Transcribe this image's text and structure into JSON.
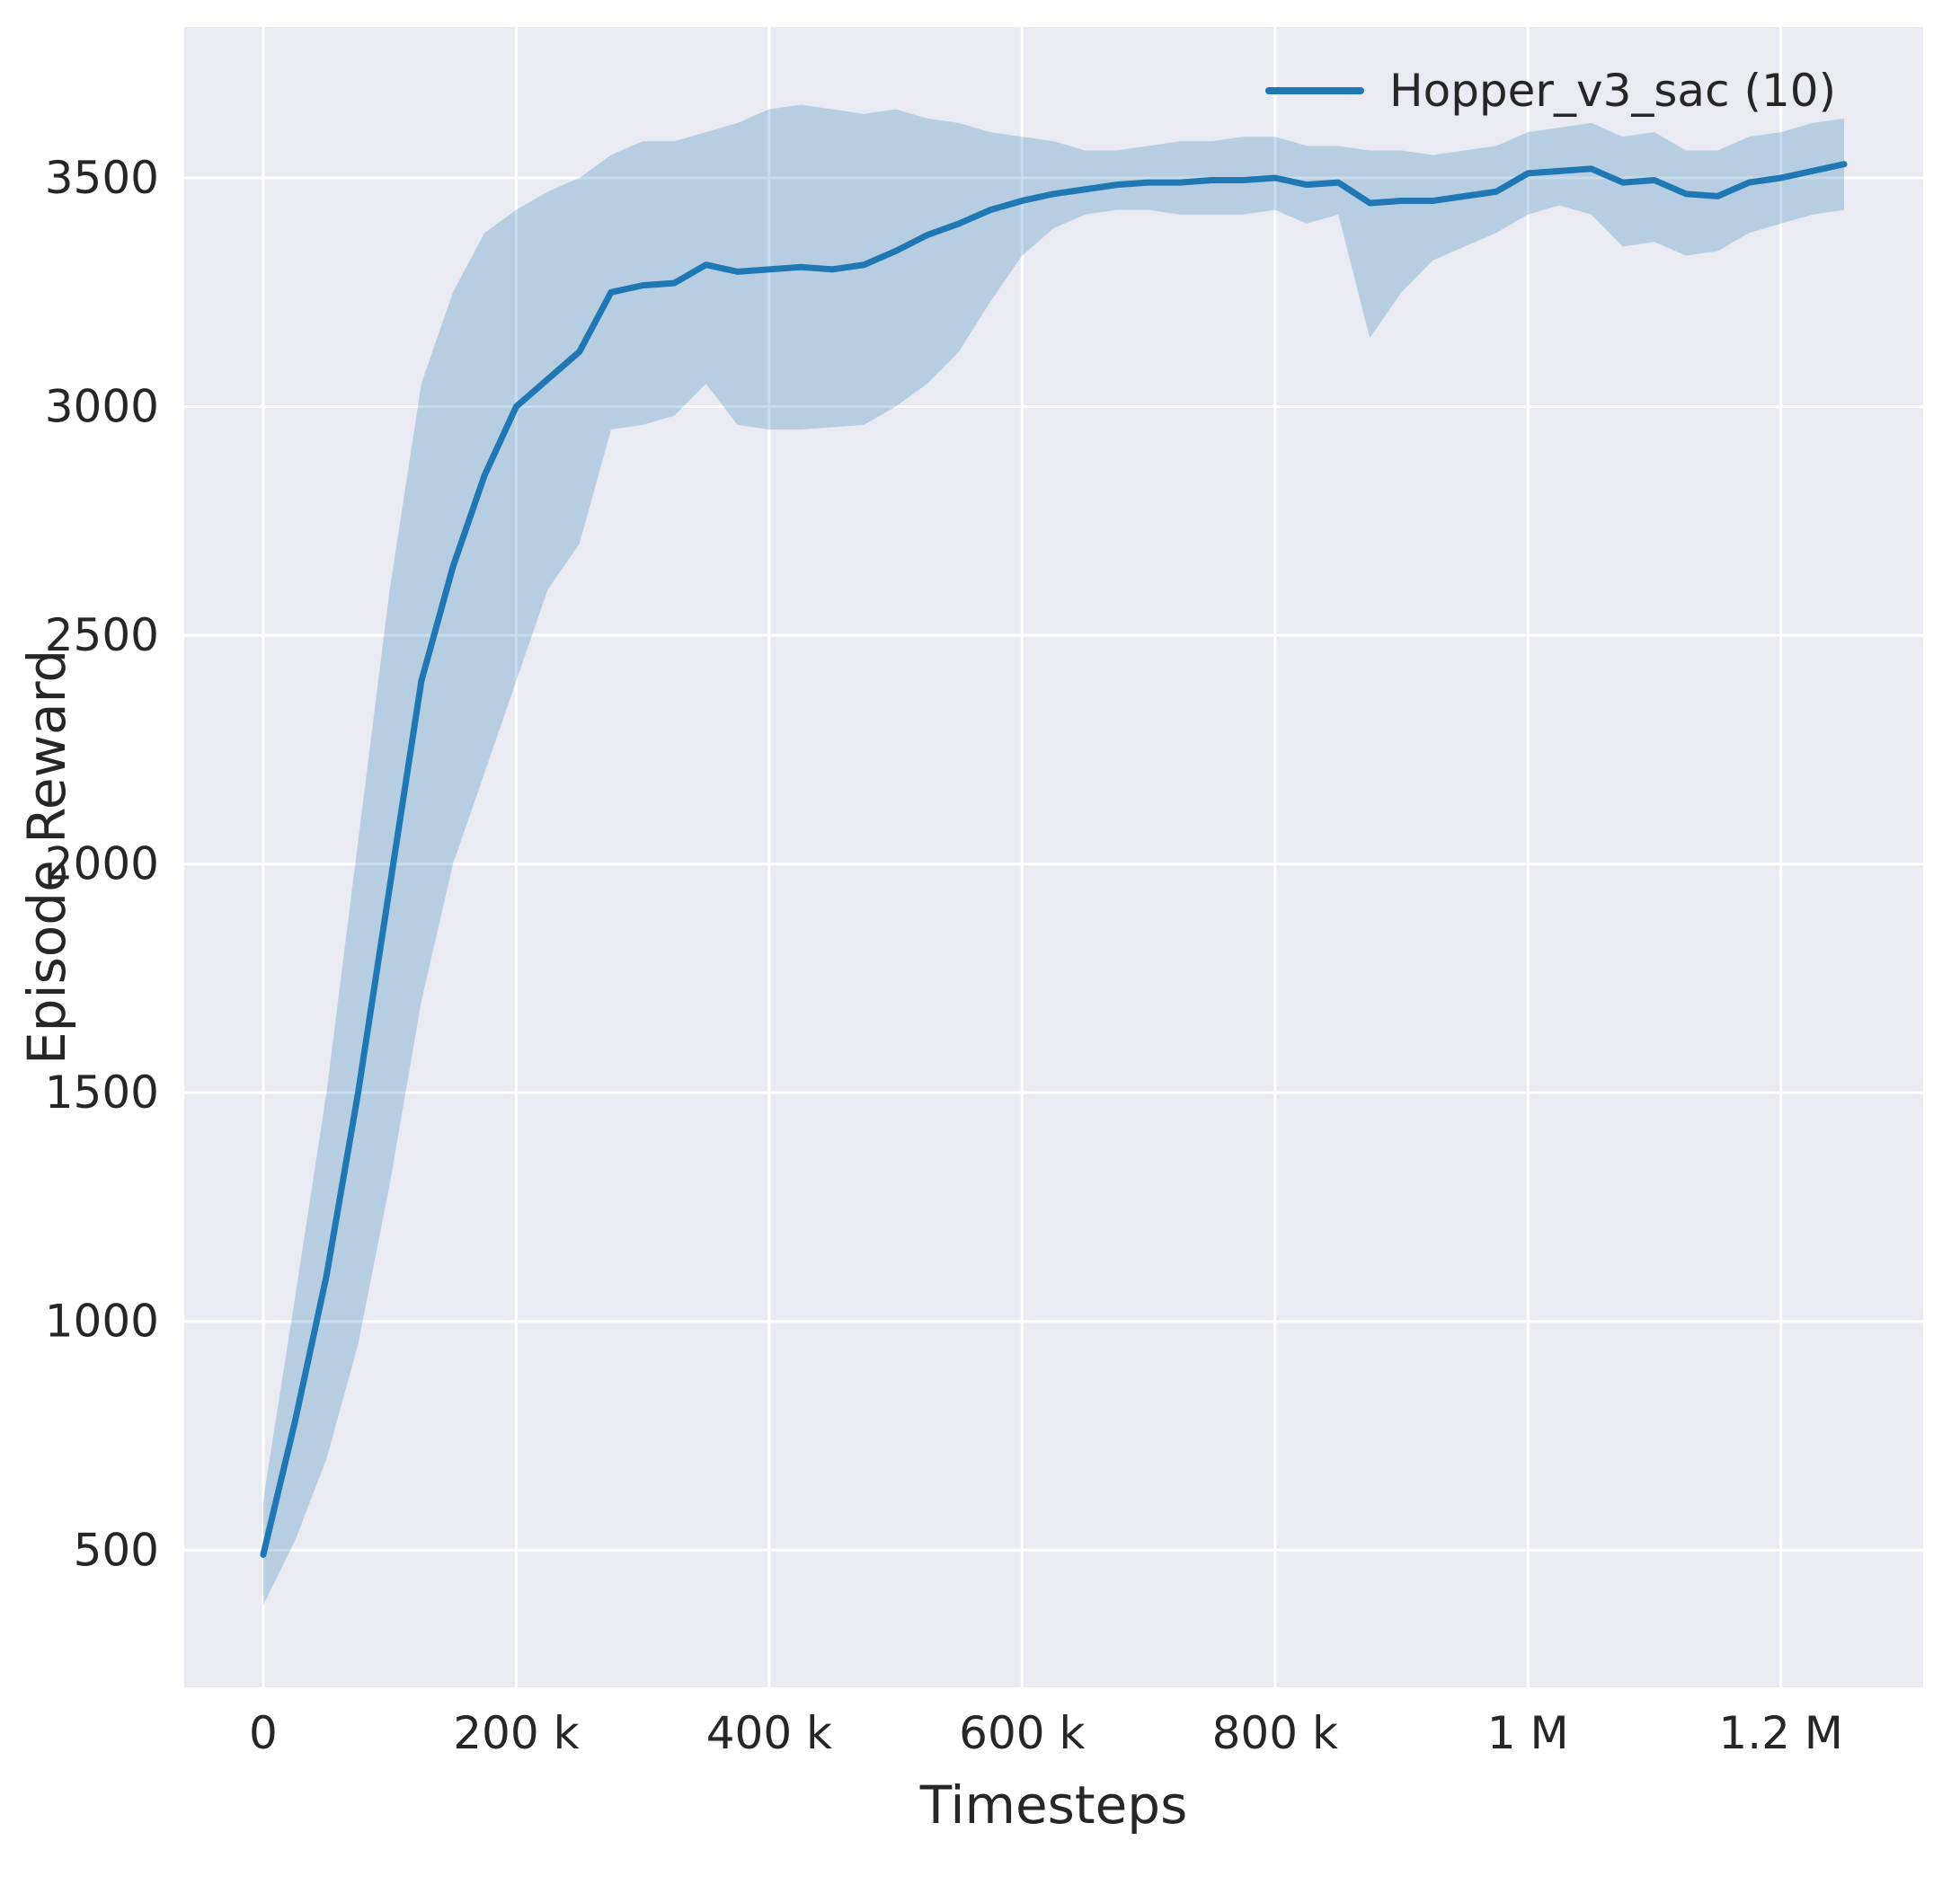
{
  "style": {
    "axes_bg": "#eaeaf2",
    "grid_color": "#ffffff",
    "text_color": "#262626",
    "line_color": "#1f77b4",
    "band_opacity": 0.25
  },
  "chart_data": {
    "type": "line",
    "title": "",
    "xlabel": "Timesteps",
    "ylabel": "Episode Reward",
    "grid": true,
    "legend_position": "upper right",
    "xlim": [
      -62500,
      1312500
    ],
    "ylim": [
      200,
      3830
    ],
    "x_ticks": [
      {
        "value": 0,
        "label": "0"
      },
      {
        "value": 200000,
        "label": "200 k"
      },
      {
        "value": 400000,
        "label": "400 k"
      },
      {
        "value": 600000,
        "label": "600 k"
      },
      {
        "value": 800000,
        "label": "800 k"
      },
      {
        "value": 1000000,
        "label": "1 M"
      },
      {
        "value": 1200000,
        "label": "1.2 M"
      }
    ],
    "y_ticks": [
      {
        "value": 500,
        "label": "500"
      },
      {
        "value": 1000,
        "label": "1000"
      },
      {
        "value": 1500,
        "label": "1500"
      },
      {
        "value": 2000,
        "label": "2000"
      },
      {
        "value": 2500,
        "label": "2500"
      },
      {
        "value": 3000,
        "label": "3000"
      },
      {
        "value": 3500,
        "label": "3500"
      }
    ],
    "series": [
      {
        "name": "Hopper_v3_sac (10)",
        "x": [
          0,
          25000,
          50000,
          75000,
          100000,
          125000,
          150000,
          175000,
          200000,
          225000,
          250000,
          275000,
          300000,
          325000,
          350000,
          375000,
          400000,
          425000,
          450000,
          475000,
          500000,
          525000,
          550000,
          575000,
          600000,
          625000,
          650000,
          675000,
          700000,
          725000,
          750000,
          775000,
          800000,
          825000,
          850000,
          875000,
          900000,
          925000,
          950000,
          975000,
          1000000,
          1025000,
          1050000,
          1075000,
          1100000,
          1125000,
          1150000,
          1175000,
          1200000,
          1225000,
          1250000
        ],
        "mean": [
          490,
          780,
          1100,
          1500,
          1950,
          2400,
          2650,
          2850,
          3000,
          3060,
          3120,
          3250,
          3265,
          3270,
          3310,
          3295,
          3300,
          3305,
          3300,
          3310,
          3340,
          3375,
          3400,
          3430,
          3450,
          3465,
          3475,
          3485,
          3490,
          3490,
          3495,
          3495,
          3500,
          3485,
          3490,
          3445,
          3450,
          3450,
          3460,
          3470,
          3510,
          3515,
          3520,
          3490,
          3495,
          3465,
          3460,
          3490,
          3500,
          3515,
          3530
        ],
        "low": [
          380,
          520,
          700,
          950,
          1300,
          1700,
          2000,
          2200,
          2400,
          2600,
          2700,
          2950,
          2960,
          2980,
          3050,
          2960,
          2950,
          2950,
          2955,
          2960,
          3000,
          3050,
          3120,
          3230,
          3330,
          3390,
          3420,
          3430,
          3430,
          3420,
          3420,
          3420,
          3430,
          3400,
          3420,
          3150,
          3250,
          3320,
          3350,
          3380,
          3420,
          3440,
          3420,
          3350,
          3360,
          3330,
          3340,
          3380,
          3400,
          3420,
          3430
        ],
        "high": [
          610,
          1050,
          1500,
          2050,
          2600,
          3050,
          3250,
          3380,
          3430,
          3470,
          3500,
          3550,
          3580,
          3580,
          3600,
          3620,
          3650,
          3660,
          3650,
          3640,
          3650,
          3630,
          3620,
          3600,
          3590,
          3580,
          3560,
          3560,
          3570,
          3580,
          3580,
          3590,
          3590,
          3570,
          3570,
          3560,
          3560,
          3550,
          3560,
          3570,
          3600,
          3610,
          3620,
          3590,
          3600,
          3560,
          3560,
          3590,
          3600,
          3620,
          3630
        ]
      }
    ]
  }
}
